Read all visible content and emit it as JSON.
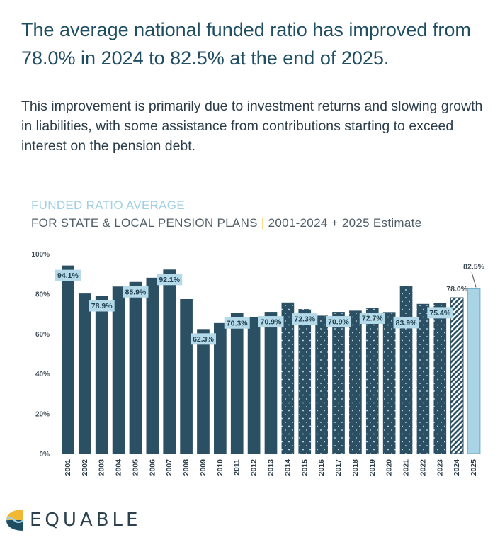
{
  "headline": "The average national funded ratio has improved from 78.0% in 2024 to 82.5% at the end of 2025.",
  "subtext": "This improvement is primarily due to investment returns and slowing growth in liabilities, with some assistance from contributions starting to exceed interest on the pension debt.",
  "chart_title": {
    "line1": "FUNDED RATIO AVERAGE",
    "line2_main": "FOR STATE & LOCAL PENSION PLANS",
    "separator": "|",
    "line2_range": "2001-2024 + 2025 Estimate"
  },
  "logo": {
    "text": "EQUABLE",
    "icon": "equable-logo-icon"
  },
  "colors": {
    "bar": "#2b5063",
    "label_bg": "#b4d9e8",
    "estimate_bar": "#a9d4e6",
    "title_light": "#9fd0e4"
  },
  "chart_data": {
    "type": "bar",
    "title": "FUNDED RATIO AVERAGE FOR STATE & LOCAL PENSION PLANS | 2001-2024 + 2025 Estimate",
    "xlabel": "",
    "ylabel": "",
    "ylim": [
      0,
      100
    ],
    "yticks": [
      "0%",
      "20%",
      "40%",
      "60%",
      "80%",
      "100%"
    ],
    "yticks_values": [
      0,
      20,
      40,
      60,
      80,
      100
    ],
    "categories": [
      "2001",
      "2002",
      "2003",
      "2004",
      "2005",
      "2006",
      "2007",
      "2008",
      "2009",
      "2010",
      "2011",
      "2012",
      "2013",
      "2014",
      "2015",
      "2016",
      "2017",
      "2018",
      "2019",
      "2020",
      "2021",
      "2022",
      "2023",
      "2024",
      "2025"
    ],
    "values": [
      94.1,
      80.1,
      78.9,
      83.6,
      85.9,
      88.0,
      92.1,
      77.3,
      62.3,
      65.3,
      70.3,
      68.4,
      70.9,
      75.6,
      72.3,
      69.0,
      70.9,
      71.5,
      72.7,
      70.8,
      83.9,
      74.9,
      75.4,
      78.0,
      82.5
    ],
    "styles": [
      "solid",
      "solid",
      "solid",
      "solid",
      "solid",
      "solid",
      "solid",
      "solid",
      "solid",
      "solid",
      "solid",
      "solid",
      "solid",
      "dotted",
      "dotted",
      "dotted",
      "dotted",
      "dotted",
      "dotted",
      "dotted",
      "dotted",
      "dotted",
      "dotted",
      "hatched",
      "estimate"
    ],
    "data_labels": [
      {
        "index": 0,
        "text": "94.1%",
        "placement": "inside"
      },
      {
        "index": 2,
        "text": "78.9%",
        "placement": "inside"
      },
      {
        "index": 4,
        "text": "85.9%",
        "placement": "inside"
      },
      {
        "index": 6,
        "text": "92.1%",
        "placement": "inside"
      },
      {
        "index": 8,
        "text": "62.3%",
        "placement": "inside"
      },
      {
        "index": 10,
        "text": "70.3%",
        "placement": "inside"
      },
      {
        "index": 12,
        "text": "70.9%",
        "placement": "inside"
      },
      {
        "index": 14,
        "text": "72.3%",
        "placement": "inside"
      },
      {
        "index": 16,
        "text": "70.9%",
        "placement": "inside"
      },
      {
        "index": 18,
        "text": "72.7%",
        "placement": "inside"
      },
      {
        "index": 20,
        "text": "83.9%",
        "placement": "inside-low"
      },
      {
        "index": 22,
        "text": "75.4%",
        "placement": "inside"
      },
      {
        "index": 23,
        "text": "78.0%",
        "placement": "above"
      },
      {
        "index": 24,
        "text": "82.5%",
        "placement": "above-pointer"
      }
    ]
  }
}
